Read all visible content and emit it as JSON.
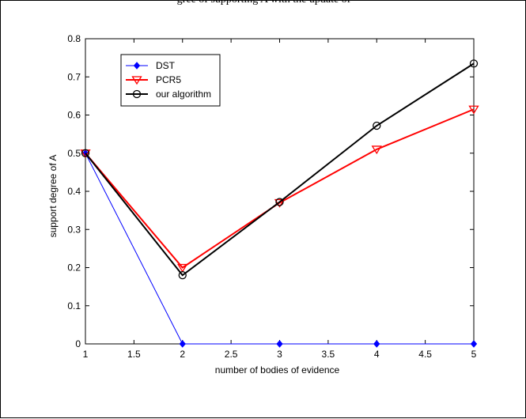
{
  "caption": "gree of supporting A with the update of",
  "chart_data": {
    "type": "line",
    "title": "",
    "xlabel": "number of bodies of evidence",
    "ylabel": "support degree of A",
    "xlim": [
      1,
      5
    ],
    "ylim": [
      0,
      0.8
    ],
    "xticks": [
      1,
      1.5,
      2,
      2.5,
      3,
      3.5,
      4,
      4.5,
      5
    ],
    "xtick_labels": [
      "1",
      "1.5",
      "2",
      "2.5",
      "3",
      "3.5",
      "4",
      "4.5",
      "5"
    ],
    "yticks": [
      0,
      0.1,
      0.2,
      0.3,
      0.4,
      0.5,
      0.6,
      0.7,
      0.8
    ],
    "ytick_labels": [
      "0",
      "0.1",
      "0.2",
      "0.3",
      "0.4",
      "0.5",
      "0.6",
      "0.7",
      "0.8"
    ],
    "x": [
      1,
      2,
      3,
      4,
      5
    ],
    "grid": false,
    "legend_position": "top-left",
    "series": [
      {
        "name": "DST",
        "values": [
          0.5,
          0.0,
          0.0,
          0.0,
          0.0
        ],
        "color": "#0000ff",
        "marker": "diamond"
      },
      {
        "name": "PCR5",
        "values": [
          0.5,
          0.2,
          0.37,
          0.51,
          0.615
        ],
        "color": "#ff0000",
        "marker": "triangle-down"
      },
      {
        "name": "our algorithm",
        "values": [
          0.5,
          0.18,
          0.372,
          0.572,
          0.735
        ],
        "color": "#000000",
        "marker": "circle"
      }
    ]
  }
}
